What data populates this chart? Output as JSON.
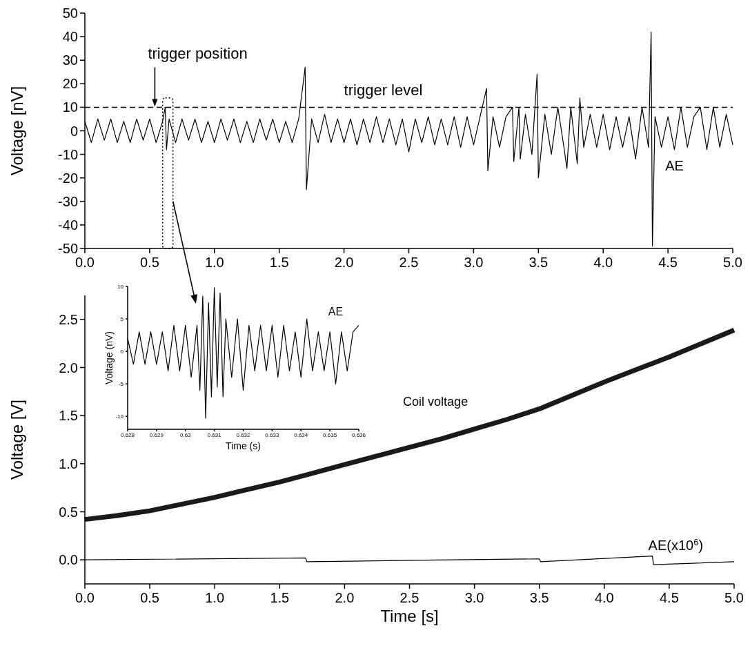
{
  "chart_data": [
    {
      "type": "line",
      "ylabel": "Voltage [nV]",
      "xlim": [
        0,
        5
      ],
      "ylim": [
        -50,
        50
      ],
      "xticks": [
        {
          "value": 0,
          "label": "0.0"
        },
        {
          "value": 0.5,
          "label": "0.5"
        },
        {
          "value": 1,
          "label": "1.0"
        },
        {
          "value": 1.5,
          "label": "1.5"
        },
        {
          "value": 2,
          "label": "2.0"
        },
        {
          "value": 2.5,
          "label": "2.5"
        },
        {
          "value": 3,
          "label": "3.0"
        },
        {
          "value": 3.5,
          "label": "3.5"
        },
        {
          "value": 4,
          "label": "4.0"
        },
        {
          "value": 4.5,
          "label": "4.5"
        },
        {
          "value": 5,
          "label": "5.0"
        }
      ],
      "yticks": [
        -50,
        -40,
        -30,
        -20,
        -10,
        0,
        10,
        20,
        30,
        40,
        50
      ],
      "grid": false,
      "legend": false,
      "ref_lines": [
        {
          "axis": "y",
          "value": 10,
          "label": "trigger level",
          "line_style": "dashed",
          "color": "#000000"
        }
      ],
      "annotations": [
        {
          "text": "trigger position",
          "x": 0.54,
          "y": 10
        }
      ],
      "series": [
        {
          "name": "AE",
          "color": "#000000",
          "x": [
            0,
            0.05,
            0.1,
            0.15,
            0.2,
            0.25,
            0.3,
            0.35,
            0.4,
            0.45,
            0.5,
            0.55,
            0.6,
            0.62,
            0.63,
            0.65,
            0.7,
            0.75,
            0.8,
            0.85,
            0.9,
            0.95,
            1,
            1.05,
            1.1,
            1.15,
            1.2,
            1.25,
            1.3,
            1.35,
            1.4,
            1.45,
            1.5,
            1.55,
            1.6,
            1.65,
            1.7,
            1.71,
            1.75,
            1.8,
            1.85,
            1.9,
            1.95,
            2,
            2.05,
            2.1,
            2.15,
            2.2,
            2.25,
            2.3,
            2.35,
            2.4,
            2.45,
            2.5,
            2.55,
            2.6,
            2.65,
            2.7,
            2.75,
            2.8,
            2.85,
            2.9,
            2.95,
            3,
            3.05,
            3.1,
            3.11,
            3.15,
            3.2,
            3.25,
            3.3,
            3.31,
            3.35,
            3.36,
            3.4,
            3.45,
            3.49,
            3.5,
            3.55,
            3.6,
            3.65,
            3.7,
            3.72,
            3.75,
            3.8,
            3.82,
            3.85,
            3.9,
            3.95,
            4,
            4.05,
            4.1,
            4.15,
            4.2,
            4.25,
            4.3,
            4.35,
            4.37,
            4.38,
            4.4,
            4.45,
            4.5,
            4.55,
            4.6,
            4.65,
            4.7,
            4.75,
            4.8,
            4.85,
            4.9,
            4.95,
            5
          ],
          "values": [
            4,
            -5,
            5,
            -4,
            5,
            -5,
            4,
            -5,
            5,
            -4,
            5,
            -5,
            4,
            10,
            -8,
            5,
            -5,
            5,
            -4,
            5,
            -5,
            4,
            -5,
            5,
            -4,
            5,
            -5,
            4,
            -5,
            5,
            -4,
            5,
            -5,
            4,
            -5,
            5,
            27,
            -25,
            5,
            -5,
            7,
            -5,
            5,
            -5,
            5,
            -6,
            5,
            -5,
            6,
            -5,
            5,
            -6,
            5,
            -9,
            5,
            -5,
            6,
            -6,
            5,
            -6,
            6,
            -7,
            6,
            -6,
            6,
            18,
            -17,
            6,
            -7,
            6,
            10,
            -13,
            10,
            -12,
            7,
            -10,
            24,
            -20,
            7,
            -10,
            10,
            -8,
            -16,
            10,
            -14,
            14,
            -7,
            7,
            -7,
            7,
            -8,
            6,
            -7,
            6,
            -12,
            10,
            -7,
            42,
            -49,
            6,
            -7,
            6,
            -8,
            10,
            -7,
            6,
            10,
            -8,
            10,
            -7,
            7,
            -6
          ]
        }
      ]
    },
    {
      "type": "line",
      "xlabel": "Time [s]",
      "ylabel": "Voltage [V]",
      "xlim": [
        0,
        5
      ],
      "ylim": [
        -0.25,
        2.75
      ],
      "xticks": [
        {
          "value": 0,
          "label": "0.0"
        },
        {
          "value": 0.5,
          "label": "0.5"
        },
        {
          "value": 1,
          "label": "1.0"
        },
        {
          "value": 1.5,
          "label": "1.5"
        },
        {
          "value": 2,
          "label": "2.0"
        },
        {
          "value": 2.5,
          "label": "2.5"
        },
        {
          "value": 3,
          "label": "3.0"
        },
        {
          "value": 3.5,
          "label": "3.5"
        },
        {
          "value": 4,
          "label": "4.0"
        },
        {
          "value": 4.5,
          "label": "4.5"
        },
        {
          "value": 5,
          "label": "5.0"
        }
      ],
      "yticks": [
        {
          "value": 0,
          "label": "0.0"
        },
        {
          "value": 0.5,
          "label": "0.5"
        },
        {
          "value": 1,
          "label": "1.0"
        },
        {
          "value": 1.5,
          "label": "1.5"
        },
        {
          "value": 2,
          "label": "2.0"
        },
        {
          "value": 2.5,
          "label": "2.5"
        }
      ],
      "grid": false,
      "legend": false,
      "series": [
        {
          "name": "Coil voltage",
          "color": "#1a1a1a",
          "x": [
            0,
            0.25,
            0.5,
            0.75,
            1,
            1.25,
            1.5,
            1.75,
            2,
            2.25,
            2.5,
            2.75,
            3,
            3.25,
            3.5,
            3.75,
            4,
            4.25,
            4.5,
            4.75,
            5
          ],
          "values": [
            0.42,
            0.46,
            0.51,
            0.58,
            0.65,
            0.73,
            0.81,
            0.9,
            0.99,
            1.08,
            1.17,
            1.26,
            1.36,
            1.46,
            1.57,
            1.71,
            1.85,
            1.98,
            2.11,
            2.25,
            2.39
          ]
        },
        {
          "name": "AE(x10$^{6}$)",
          "color": "#000000",
          "x": [
            0,
            1.7,
            1.71,
            2.5,
            3.5,
            3.51,
            4.37,
            4.38,
            5
          ],
          "values": [
            0,
            0.02,
            -0.02,
            -0.005,
            0.01,
            -0.02,
            0.04,
            -0.05,
            -0.02
          ]
        }
      ]
    },
    {
      "type": "line",
      "xlabel": "Time (s)",
      "ylabel": "Voltage (nV)",
      "xlim": [
        0.628,
        0.636
      ],
      "ylim": [
        -12,
        10
      ],
      "xticks": [
        0.628,
        0.629,
        0.63,
        0.631,
        0.632,
        0.633,
        0.634,
        0.635,
        0.636
      ],
      "yticks": [
        -10,
        -5,
        0,
        5,
        10
      ],
      "grid": false,
      "legend": false,
      "series": [
        {
          "name": "AE",
          "color": "#000000",
          "x": [
            0.628,
            0.6282,
            0.6284,
            0.6286,
            0.6288,
            0.629,
            0.6292,
            0.6294,
            0.6296,
            0.6298,
            0.63,
            0.6302,
            0.6304,
            0.6305,
            0.6306,
            0.6307,
            0.6308,
            0.6309,
            0.631,
            0.6311,
            0.6312,
            0.6313,
            0.6314,
            0.6316,
            0.6318,
            0.632,
            0.6322,
            0.6324,
            0.6326,
            0.6328,
            0.633,
            0.6332,
            0.6334,
            0.6336,
            0.6338,
            0.634,
            0.6342,
            0.6344,
            0.6346,
            0.6348,
            0.635,
            0.6352,
            0.6354,
            0.6356,
            0.6358,
            0.636
          ],
          "values": [
            2,
            -2,
            3,
            -2,
            3,
            -2,
            3,
            -3,
            4,
            -3,
            4,
            -4,
            4,
            -6,
            8.5,
            -10.3,
            7.5,
            -7,
            9.8,
            -5.5,
            9,
            -7,
            5,
            -4,
            5,
            -6,
            4,
            -3,
            4,
            -3,
            4,
            -4,
            4,
            -3,
            3,
            -4,
            5,
            -3,
            3,
            -3,
            3,
            -5,
            3,
            -3,
            3,
            4
          ]
        }
      ]
    }
  ]
}
